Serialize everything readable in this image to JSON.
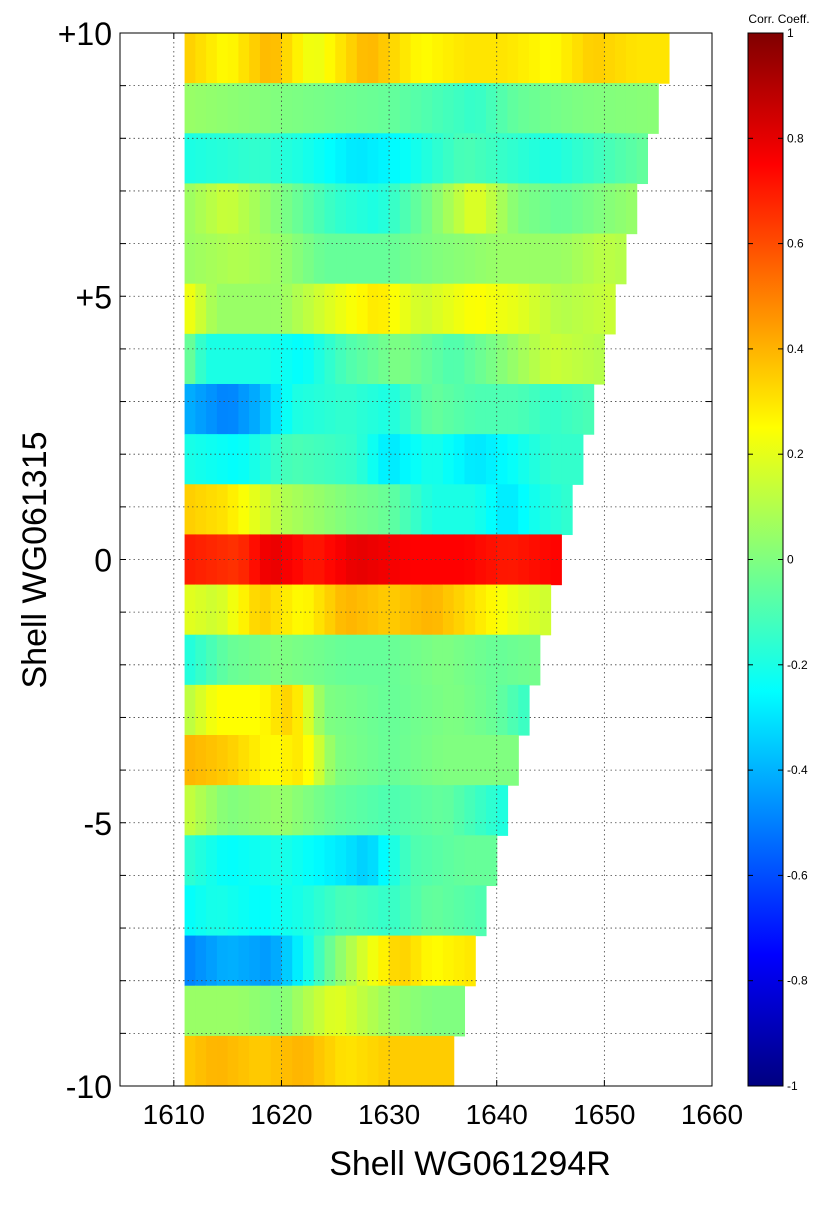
{
  "chart_data": {
    "type": "heatmap",
    "xlabel": "Shell WG061294R",
    "ylabel": "Shell WG061315",
    "xlim": [
      1605,
      1660
    ],
    "ylim": [
      -10,
      10
    ],
    "x_ticks": [
      {
        "value": 1610,
        "label": "1610"
      },
      {
        "value": 1620,
        "label": "1620"
      },
      {
        "value": 1630,
        "label": "1630"
      },
      {
        "value": 1640,
        "label": "1640"
      },
      {
        "value": 1650,
        "label": "1650"
      },
      {
        "value": 1660,
        "label": "1660"
      }
    ],
    "y_ticks": [
      {
        "value": 10,
        "label": "+10"
      },
      {
        "value": 5,
        "label": "+5"
      },
      {
        "value": 0,
        "label": "0"
      },
      {
        "value": -5,
        "label": "-5"
      },
      {
        "value": -10,
        "label": "-10"
      }
    ],
    "grid": true,
    "x_start": 1611,
    "colorbar": {
      "label": "Corr. Coeff.",
      "range": [
        -1,
        1
      ],
      "colormap": "jet",
      "ticks": [
        {
          "value": 1,
          "label": "1"
        },
        {
          "value": 0.8,
          "label": "0.8"
        },
        {
          "value": 0.6,
          "label": "0.6"
        },
        {
          "value": 0.4,
          "label": "0.4"
        },
        {
          "value": 0.2,
          "label": "0.2"
        },
        {
          "value": 0,
          "label": "0"
        },
        {
          "value": -0.2,
          "label": "-0.2"
        },
        {
          "value": -0.4,
          "label": "-0.4"
        },
        {
          "value": -0.6,
          "label": "-0.6"
        },
        {
          "value": -0.8,
          "label": "-0.8"
        },
        {
          "value": -1,
          "label": "-1"
        }
      ]
    },
    "rows": [
      {
        "y": 10,
        "anchors": [
          [
            1611,
            0.35
          ],
          [
            1615,
            0.25
          ],
          [
            1619,
            0.4
          ],
          [
            1623,
            0.2
          ],
          [
            1628,
            0.4
          ],
          [
            1633,
            0.25
          ],
          [
            1637,
            0.3
          ],
          [
            1641,
            0.3
          ],
          [
            1645,
            0.25
          ],
          [
            1649,
            0.35
          ],
          [
            1653,
            0.3
          ],
          [
            1656,
            0.3
          ]
        ]
      },
      {
        "y": 9,
        "anchors": [
          [
            1611,
            0.05
          ],
          [
            1620,
            0.0
          ],
          [
            1630,
            -0.05
          ],
          [
            1638,
            -0.15
          ],
          [
            1642,
            -0.05
          ],
          [
            1648,
            0.0
          ],
          [
            1655,
            0.02
          ]
        ]
      },
      {
        "y": 8,
        "anchors": [
          [
            1611,
            -0.2
          ],
          [
            1618,
            -0.15
          ],
          [
            1622,
            -0.2
          ],
          [
            1627,
            -0.3
          ],
          [
            1631,
            -0.25
          ],
          [
            1637,
            -0.1
          ],
          [
            1641,
            -0.15
          ],
          [
            1645,
            -0.2
          ],
          [
            1654,
            -0.05
          ]
        ]
      },
      {
        "y": 7,
        "anchors": [
          [
            1611,
            0.05
          ],
          [
            1615,
            0.15
          ],
          [
            1620,
            0.0
          ],
          [
            1625,
            -0.15
          ],
          [
            1629,
            -0.2
          ],
          [
            1634,
            0.0
          ],
          [
            1638,
            0.2
          ],
          [
            1642,
            0.0
          ],
          [
            1646,
            -0.05
          ],
          [
            1653,
            0.05
          ]
        ]
      },
      {
        "y": 6,
        "anchors": [
          [
            1611,
            0.05
          ],
          [
            1616,
            0.1
          ],
          [
            1620,
            0.05
          ],
          [
            1624,
            -0.05
          ],
          [
            1630,
            -0.05
          ],
          [
            1634,
            0.0
          ],
          [
            1640,
            0.05
          ],
          [
            1646,
            0.05
          ],
          [
            1650,
            0.12
          ],
          [
            1652,
            0.1
          ]
        ]
      },
      {
        "y": 5,
        "anchors": [
          [
            1611,
            0.25
          ],
          [
            1614,
            0.05
          ],
          [
            1620,
            0.05
          ],
          [
            1625,
            0.2
          ],
          [
            1629,
            0.3
          ],
          [
            1633,
            0.15
          ],
          [
            1638,
            0.25
          ],
          [
            1642,
            0.2
          ],
          [
            1646,
            0.1
          ],
          [
            1651,
            0.15
          ]
        ]
      },
      {
        "y": 4,
        "anchors": [
          [
            1611,
            0.0
          ],
          [
            1613,
            -0.2
          ],
          [
            1618,
            -0.2
          ],
          [
            1622,
            -0.25
          ],
          [
            1626,
            -0.1
          ],
          [
            1631,
            0.0
          ],
          [
            1636,
            -0.1
          ],
          [
            1640,
            0.0
          ],
          [
            1645,
            0.15
          ],
          [
            1650,
            0.1
          ]
        ]
      },
      {
        "y": 3,
        "anchors": [
          [
            1611,
            -0.4
          ],
          [
            1615,
            -0.5
          ],
          [
            1618,
            -0.4
          ],
          [
            1621,
            -0.2
          ],
          [
            1626,
            -0.15
          ],
          [
            1630,
            -0.2
          ],
          [
            1634,
            -0.05
          ],
          [
            1638,
            -0.1
          ],
          [
            1642,
            -0.1
          ],
          [
            1645,
            -0.15
          ],
          [
            1649,
            -0.1
          ]
        ]
      },
      {
        "y": 2,
        "anchors": [
          [
            1611,
            -0.2
          ],
          [
            1616,
            -0.25
          ],
          [
            1621,
            -0.1
          ],
          [
            1627,
            -0.15
          ],
          [
            1630,
            -0.3
          ],
          [
            1634,
            -0.2
          ],
          [
            1638,
            -0.3
          ],
          [
            1641,
            -0.25
          ],
          [
            1645,
            -0.15
          ],
          [
            1648,
            -0.15
          ]
        ]
      },
      {
        "y": 1,
        "anchors": [
          [
            1611,
            0.35
          ],
          [
            1615,
            0.3
          ],
          [
            1620,
            0.1
          ],
          [
            1626,
            0.0
          ],
          [
            1630,
            -0.05
          ],
          [
            1634,
            -0.2
          ],
          [
            1638,
            -0.2
          ],
          [
            1641,
            -0.3
          ],
          [
            1644,
            -0.2
          ],
          [
            1647,
            -0.15
          ]
        ]
      },
      {
        "y": 0,
        "anchors": [
          [
            1611,
            0.7
          ],
          [
            1616,
            0.65
          ],
          [
            1619,
            0.8
          ],
          [
            1623,
            0.7
          ],
          [
            1627,
            0.8
          ],
          [
            1632,
            0.75
          ],
          [
            1637,
            0.75
          ],
          [
            1641,
            0.7
          ],
          [
            1646,
            0.75
          ]
        ]
      },
      {
        "y": -1,
        "anchors": [
          [
            1611,
            0.2
          ],
          [
            1614,
            0.15
          ],
          [
            1618,
            0.35
          ],
          [
            1622,
            0.25
          ],
          [
            1626,
            0.4
          ],
          [
            1630,
            0.35
          ],
          [
            1634,
            0.4
          ],
          [
            1638,
            0.3
          ],
          [
            1642,
            0.2
          ],
          [
            1645,
            0.15
          ]
        ]
      },
      {
        "y": -2,
        "anchors": [
          [
            1611,
            -0.2
          ],
          [
            1615,
            -0.05
          ],
          [
            1620,
            0.0
          ],
          [
            1626,
            -0.05
          ],
          [
            1630,
            -0.05
          ],
          [
            1635,
            0.0
          ],
          [
            1640,
            -0.05
          ],
          [
            1644,
            -0.02
          ]
        ]
      },
      {
        "y": -3,
        "anchors": [
          [
            1611,
            0.1
          ],
          [
            1614,
            0.25
          ],
          [
            1618,
            0.25
          ],
          [
            1621,
            0.35
          ],
          [
            1624,
            0.0
          ],
          [
            1630,
            -0.05
          ],
          [
            1636,
            0.0
          ],
          [
            1640,
            -0.05
          ],
          [
            1643,
            -0.15
          ]
        ]
      },
      {
        "y": -4,
        "anchors": [
          [
            1611,
            0.4
          ],
          [
            1615,
            0.35
          ],
          [
            1619,
            0.25
          ],
          [
            1622,
            0.3
          ],
          [
            1625,
            0.0
          ],
          [
            1630,
            -0.05
          ],
          [
            1635,
            0.0
          ],
          [
            1639,
            0.0
          ],
          [
            1642,
            0.0
          ]
        ]
      },
      {
        "y": -5,
        "anchors": [
          [
            1611,
            0.15
          ],
          [
            1615,
            0.0
          ],
          [
            1620,
            0.05
          ],
          [
            1625,
            -0.05
          ],
          [
            1630,
            -0.1
          ],
          [
            1635,
            -0.05
          ],
          [
            1639,
            -0.15
          ],
          [
            1641,
            -0.2
          ]
        ]
      },
      {
        "y": -6,
        "anchors": [
          [
            1611,
            -0.15
          ],
          [
            1615,
            -0.25
          ],
          [
            1620,
            -0.2
          ],
          [
            1626,
            -0.3
          ],
          [
            1628,
            -0.35
          ],
          [
            1632,
            -0.1
          ],
          [
            1637,
            -0.05
          ],
          [
            1640,
            -0.05
          ]
        ]
      },
      {
        "y": -7,
        "anchors": [
          [
            1611,
            -0.25
          ],
          [
            1614,
            -0.2
          ],
          [
            1618,
            -0.25
          ],
          [
            1622,
            -0.2
          ],
          [
            1626,
            -0.1
          ],
          [
            1630,
            -0.15
          ],
          [
            1634,
            -0.05
          ],
          [
            1639,
            -0.1
          ]
        ]
      },
      {
        "y": -8,
        "anchors": [
          [
            1611,
            -0.5
          ],
          [
            1615,
            -0.4
          ],
          [
            1619,
            -0.45
          ],
          [
            1622,
            -0.25
          ],
          [
            1625,
            0.0
          ],
          [
            1628,
            0.2
          ],
          [
            1631,
            0.35
          ],
          [
            1634,
            0.25
          ],
          [
            1638,
            0.3
          ]
        ]
      },
      {
        "y": -9,
        "anchors": [
          [
            1611,
            0.05
          ],
          [
            1616,
            0.05
          ],
          [
            1620,
            0.0
          ],
          [
            1625,
            0.2
          ],
          [
            1630,
            0.05
          ],
          [
            1634,
            0.0
          ],
          [
            1637,
            0.0
          ]
        ]
      },
      {
        "y": -10,
        "anchors": [
          [
            1611,
            0.35
          ],
          [
            1614,
            0.4
          ],
          [
            1618,
            0.35
          ],
          [
            1622,
            0.4
          ],
          [
            1626,
            0.3
          ],
          [
            1630,
            0.35
          ],
          [
            1634,
            0.35
          ],
          [
            1636,
            0.35
          ]
        ]
      }
    ]
  }
}
